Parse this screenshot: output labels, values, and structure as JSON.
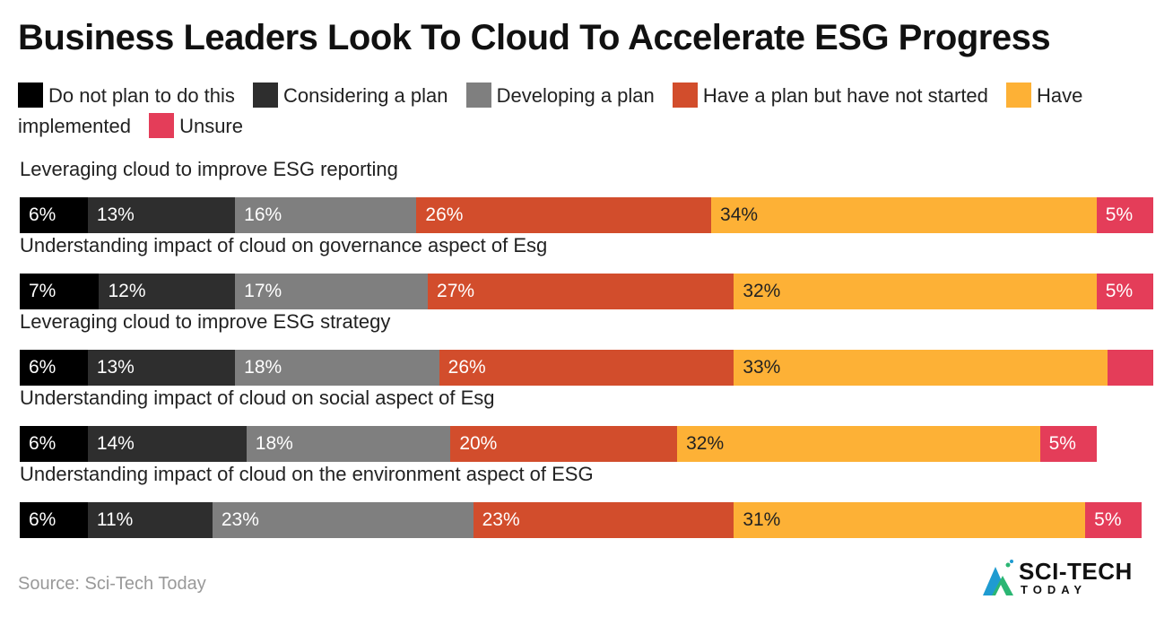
{
  "title": "Business Leaders Look To Cloud To Accelerate ESG Progress",
  "legend": [
    {
      "label": "Do not plan to do this",
      "color": "#000000"
    },
    {
      "label": "Considering a plan",
      "color": "#2e2e2e"
    },
    {
      "label": "Developing a plan",
      "color": "#7f7f7f"
    },
    {
      "label": "Have a plan but have not started",
      "color": "#d24d2c"
    },
    {
      "label": "Have implemented",
      "color": "#fdb136"
    },
    {
      "label": "Unsure",
      "color": "#e43d59"
    }
  ],
  "source": "Source: Sci-Tech Today",
  "logo": {
    "main": "SCI-TECH",
    "sub": "TODAY"
  },
  "chart_data": {
    "type": "bar",
    "orientation": "horizontal",
    "stacked": true,
    "categories": [
      "Leveraging cloud to improve ESG reporting",
      "Understanding impact of cloud on governance aspect of Esg",
      "Leveraging cloud to improve ESG strategy",
      "Understanding impact of cloud on social aspect of Esg",
      "Understanding impact of cloud on the environment aspect of ESG"
    ],
    "series": [
      {
        "name": "Do not plan to do this",
        "values": [
          6,
          7,
          6,
          6,
          6
        ],
        "labels": [
          "6%",
          "7%",
          "6%",
          "6%",
          "6%"
        ]
      },
      {
        "name": "Considering a plan",
        "values": [
          13,
          12,
          13,
          14,
          11
        ],
        "labels": [
          "13%",
          "12%",
          "13%",
          "14%",
          "11%"
        ]
      },
      {
        "name": "Developing a plan",
        "values": [
          16,
          17,
          18,
          18,
          23
        ],
        "labels": [
          "16%",
          "17%",
          "18%",
          "18%",
          "23%"
        ]
      },
      {
        "name": "Have a plan but have not started",
        "values": [
          26,
          27,
          26,
          20,
          23
        ],
        "labels": [
          "26%",
          "27%",
          "26%",
          "20%",
          "23%"
        ]
      },
      {
        "name": "Have implemented",
        "values": [
          34,
          32,
          33,
          32,
          31
        ],
        "labels": [
          "34%",
          "32%",
          "33%",
          "32%",
          "31%"
        ]
      },
      {
        "name": "Unsure",
        "values": [
          5,
          5,
          4,
          5,
          5
        ],
        "labels": [
          "5%",
          "5%",
          "",
          "5%",
          "5%"
        ]
      }
    ],
    "xlim": [
      0,
      100
    ],
    "grid": false,
    "legend_position": "top"
  }
}
